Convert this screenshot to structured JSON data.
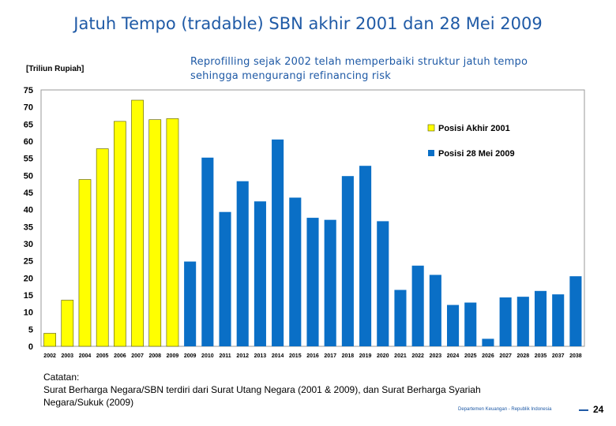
{
  "slide": {
    "title": "Jatuh Tempo (tradable) SBN akhir 2001 dan 28 Mei 2009",
    "subtitle": "Reprofilling sejak 2002 telah memperbaiki struktur jatuh tempo sehingga mengurangi refinancing risk",
    "unit_label": "[Triliun Rupiah]",
    "note_heading": "Catatan:",
    "note_line1": "Surat Berharga Negara/SBN terdiri dari Surat Utang Negara (2001 & 2009), dan Surat Berharga Syariah",
    "note_line2": "Negara/Sukuk (2009)",
    "footer": "Departemen Keuangan - Republik Indonesia",
    "page_number": "24"
  },
  "chart_data": {
    "type": "bar",
    "title": "",
    "xlabel": "",
    "ylabel": "",
    "ylim": [
      0,
      75
    ],
    "y_ticks": [
      0,
      5,
      10,
      15,
      20,
      25,
      30,
      35,
      40,
      45,
      50,
      55,
      60,
      65,
      70,
      75
    ],
    "grid": false,
    "legend_position": "top-right",
    "categories": [
      "2002",
      "2003",
      "2004",
      "2005",
      "2006",
      "2007",
      "2008",
      "2009",
      "2009",
      "2010",
      "2011",
      "2012",
      "2013",
      "2014",
      "2015",
      "2016",
      "2017",
      "2018",
      "2019",
      "2020",
      "2021",
      "2022",
      "2023",
      "2024",
      "2025",
      "2026",
      "2027",
      "2028",
      "2035",
      "2037",
      "2038"
    ],
    "series": [
      {
        "name": "Posisi Akhir 2001",
        "color": "#ffff00",
        "values": [
          3.8,
          13.5,
          48.8,
          57.8,
          65.8,
          72.0,
          66.3,
          66.6,
          null,
          null,
          null,
          null,
          null,
          null,
          null,
          null,
          null,
          null,
          null,
          null,
          null,
          null,
          null,
          null,
          null,
          null,
          null,
          null,
          null,
          null,
          null
        ]
      },
      {
        "name": "Posisi 28 Mei 2009",
        "color": "#0a6fc6",
        "values": [
          null,
          null,
          null,
          null,
          null,
          null,
          null,
          null,
          24.8,
          55.2,
          39.3,
          48.3,
          42.4,
          60.5,
          43.5,
          37.6,
          37.0,
          49.8,
          52.8,
          36.6,
          16.5,
          23.6,
          20.9,
          12.1,
          12.8,
          2.2,
          14.3,
          14.5,
          16.2,
          15.2,
          20.5
        ]
      }
    ]
  }
}
